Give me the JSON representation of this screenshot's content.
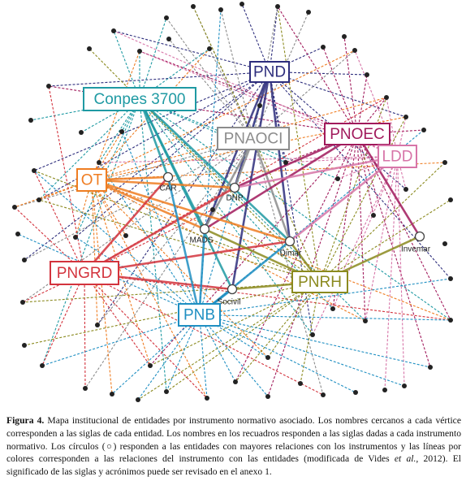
{
  "instruments": [
    {
      "label": "PND",
      "color": "#2d2d7c"
    },
    {
      "label": "Conpes 3700",
      "color": "#1f9aa3"
    },
    {
      "label": "PNAOCI",
      "color": "#8c8c8c"
    },
    {
      "label": "PNOEC",
      "color": "#a11a5c"
    },
    {
      "label": "LDD",
      "color": "#d775a8"
    },
    {
      "label": "OT",
      "color": "#ef7d22"
    },
    {
      "label": "PNGRD",
      "color": "#d3333d"
    },
    {
      "label": "PNRH",
      "color": "#8b8a1f"
    },
    {
      "label": "PNB",
      "color": "#1f8fc2"
    }
  ],
  "entities": [
    {
      "label": "CAR"
    },
    {
      "label": "DNP"
    },
    {
      "label": "MADS"
    },
    {
      "label": "Dimar"
    },
    {
      "label": "Invemar"
    },
    {
      "label": "Socivil"
    }
  ],
  "caption": {
    "label": "Figura 4.",
    "text_before": "Mapa institucional de entidades por instrumento normativo asociado. Los nombres cercanos a cada vértice corresponden a las siglas de cada entidad. Los nombres en los recuadros responden a las siglas dadas a cada instrumento normativo. Los círculos (○) responden a las entidades con mayores relaciones con los instrumentos y las líneas por colores corresponden a las relaciones del instrumento con las entidades (modificada de Vides ",
    "italic": "et al.",
    "text_after": ", 2012). El significado de las siglas y acrónimos puede ser revisado en el anexo 1."
  }
}
